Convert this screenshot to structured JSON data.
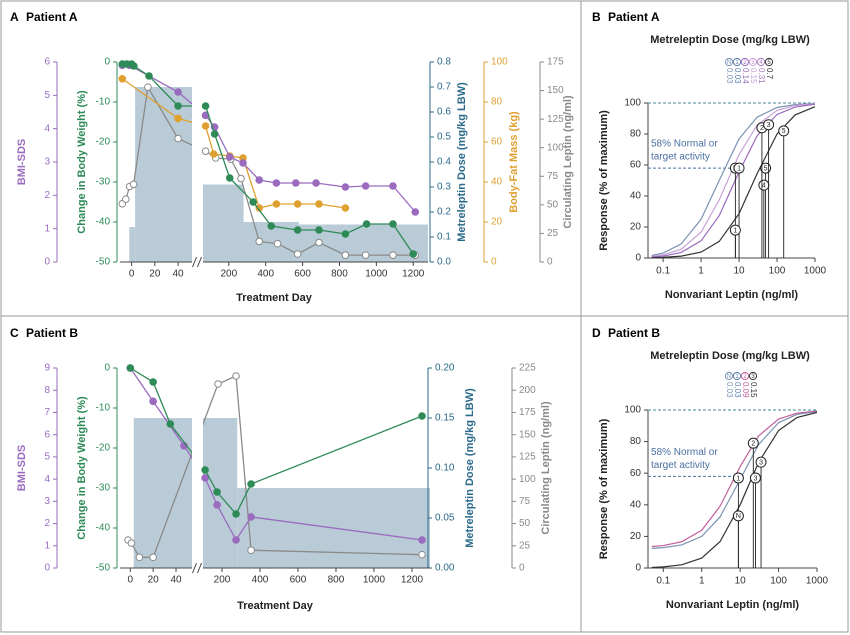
{
  "chart_data": [
    {
      "panel": "A",
      "title": "Patient A",
      "type": "timecourse",
      "xlabel": "Treatment Day",
      "xsegments": [
        {
          "xlim": [
            -10,
            52
          ],
          "xticks": [
            0,
            20,
            40
          ]
        },
        {
          "xlim": [
            60,
            1280
          ],
          "xticks": [
            200,
            400,
            600,
            800,
            1000,
            1200
          ]
        }
      ],
      "axes": [
        {
          "label": "BMI-SDS",
          "color": "#9a6bbf",
          "lim": [
            0,
            6
          ],
          "ticks": [
            0,
            1,
            2,
            3,
            4,
            5,
            6
          ]
        },
        {
          "label": "Change in Body Weight (%)",
          "color": "#2e8b57",
          "lim": [
            -50,
            0
          ],
          "ticks": [
            -50,
            -40,
            -30,
            -20,
            -10,
            0
          ]
        },
        {
          "label": "Metreleptin Dose (mg/kg LBW)",
          "color": "#2b6a8a",
          "lim": [
            0,
            0.8
          ],
          "ticks": [
            {
              "value": 0,
              "label": "0.0"
            },
            0.1,
            0.2,
            0.3,
            0.4,
            0.5,
            0.6,
            0.7,
            0.8
          ]
        },
        {
          "label": "Body-Fat Mass (kg)",
          "color": "#e0a030",
          "lim": [
            0,
            100
          ],
          "ticks": [
            0,
            20,
            40,
            60,
            80,
            100
          ]
        },
        {
          "label": "Circulating Leptin (ng/ml)",
          "color": "#8a8a8a",
          "lim": [
            0,
            175
          ],
          "ticks": [
            0,
            25,
            50,
            75,
            100,
            125,
            150,
            175
          ]
        }
      ],
      "bars": {
        "axis": 2,
        "color": "#b8cbd6",
        "x_start": [
          -2,
          3,
          60,
          280,
          580
        ],
        "x_end": [
          3,
          52,
          280,
          580,
          1280
        ],
        "values": [
          0.14,
          0.7,
          0.31,
          0.16,
          0.15
        ]
      },
      "series": [
        {
          "axis": 4,
          "color": "#8a8a8a",
          "marker": "open",
          "x": [
            -8,
            -5,
            -1.7,
            1.7,
            14,
            40,
            74,
            129,
            211,
            266,
            365,
            464,
            573,
            689,
            832,
            942,
            1090,
            1211
          ],
          "values": [
            51,
            55,
            66,
            68,
            153,
            108,
            97,
            91,
            90,
            73,
            18,
            16,
            7,
            17,
            6,
            6,
            6,
            6
          ]
        },
        {
          "axis": 3,
          "color": "#e0a030",
          "marker": "filled",
          "x": [
            -8,
            40,
            74,
            118,
            205,
            277,
            365,
            458,
            573,
            689,
            832
          ],
          "values": [
            91.6,
            71.8,
            68,
            54,
            53,
            52,
            27,
            29,
            29,
            29,
            27
          ]
        },
        {
          "axis": 0,
          "color": "#9a6bbf",
          "marker": "filled",
          "x": [
            -8,
            -1.7,
            40,
            74,
            123,
            205,
            277,
            365,
            458,
            563,
            673,
            832,
            942,
            1090,
            1211
          ],
          "values": [
            5.9,
            5.9,
            5.1,
            4.4,
            4.05,
            3.15,
            2.97,
            2.46,
            2.37,
            2.37,
            2.37,
            2.25,
            2.28,
            2.28,
            1.5
          ]
        },
        {
          "axis": 1,
          "color": "#2e8b57",
          "marker": "filled",
          "x": [
            -8,
            -4,
            0,
            2,
            15,
            40,
            74,
            123,
            205,
            332,
            430,
            573,
            689,
            832,
            947,
            1090,
            1200
          ],
          "values": [
            -0.5,
            -0.5,
            -0.5,
            -1,
            -3.5,
            -11,
            -11,
            -18,
            -29,
            -35,
            -41,
            -42,
            -42,
            -43,
            -40.5,
            -40.5,
            -48
          ]
        }
      ]
    },
    {
      "panel": "B",
      "title": "Patient A",
      "type": "dose-response",
      "subtitle": "Metreleptin Dose (mg/kg LBW)",
      "xlabel": "Nonvariant Leptin (ng/ml)",
      "ylabel": "Response (% of maximum)",
      "log_x": true,
      "xlim": [
        0.04,
        1000
      ],
      "xticks": [
        0.1,
        1,
        10,
        100,
        1000
      ],
      "ylim": [
        0,
        100
      ],
      "yticks": [
        0,
        20,
        40,
        60,
        80,
        100
      ],
      "doses": [
        {
          "label": "N",
          "dose": 0.03,
          "color": "#7b93b3"
        },
        {
          "label": "1",
          "dose": 0.03,
          "color": "#5a7fb0"
        },
        {
          "label": "2",
          "dose": 0.14,
          "color": "#9a6bbf"
        },
        {
          "label": "3",
          "dose": 0.15,
          "color": "#c7a0d6"
        },
        {
          "label": "4",
          "dose": 0.31,
          "color": "#a87ac0"
        },
        {
          "label": "5",
          "dose": 0.7,
          "color": "#333333"
        }
      ],
      "x": [
        0.05,
        0.1,
        0.3,
        1,
        3,
        10,
        30,
        100,
        300,
        1000
      ],
      "series": [
        {
          "color": "#7b93b3",
          "values": [
            1.6,
            3.2,
            9.1,
            25,
            50,
            76.9,
            90.9,
            97.1,
            99.0,
            99.7
          ]
        },
        {
          "color": "#c7a0d6",
          "values": [
            1.0,
            2.0,
            5.7,
            16.7,
            37.5,
            66.7,
            85.7,
            95.2,
            98.4,
            99.5
          ]
        },
        {
          "color": "#9a6bbf",
          "values": [
            0.6,
            1.2,
            3.6,
            11.1,
            27.3,
            55.6,
            78.9,
            92.6,
            97.4,
            99.2
          ]
        },
        {
          "color": "#333333",
          "values": [
            0.2,
            0.4,
            1.2,
            3.8,
            10.7,
            28.6,
            54.5,
            80,
            92.3,
            97.6
          ]
        }
      ],
      "points": [
        {
          "label": "N",
          "x": 8,
          "y": 58
        },
        {
          "label": "1",
          "x": 10,
          "y": 58
        },
        {
          "label": "5",
          "x": 50,
          "y": 58
        },
        {
          "label": "1",
          "x": 8,
          "y": 18
        },
        {
          "label": "4",
          "x": 45,
          "y": 47
        },
        {
          "label": "2",
          "x": 40,
          "y": 84
        },
        {
          "label": "3",
          "x": 60,
          "y": 86
        },
        {
          "label": "5",
          "x": 150,
          "y": 82
        }
      ],
      "target": 58,
      "annotation": [
        "58% Normal or",
        "target activity"
      ]
    },
    {
      "panel": "C",
      "title": "Patient B",
      "type": "timecourse",
      "xlabel": "Treatment Day",
      "xsegments": [
        {
          "xlim": [
            -9,
            54
          ],
          "xticks": [
            0,
            20,
            40
          ]
        },
        {
          "xlim": [
            100,
            1295
          ],
          "xticks": [
            200,
            400,
            600,
            800,
            1000,
            1200
          ]
        }
      ],
      "axes": [
        {
          "label": "BMI-SDS",
          "color": "#9a6bbf",
          "lim": [
            0,
            9
          ],
          "ticks": [
            0,
            1,
            2,
            3,
            4,
            5,
            6,
            7,
            8,
            9
          ]
        },
        {
          "label": "Change in Body Weight (%)",
          "color": "#2e8b57",
          "lim": [
            -50,
            0
          ],
          "ticks": [
            -50,
            -40,
            -30,
            -20,
            -10,
            0
          ]
        },
        {
          "label": "Metreleptin Dose (mg/kg LBW)",
          "color": "#2b6a8a",
          "lim": [
            0,
            0.2
          ],
          "ticks": [
            {
              "value": 0,
              "label": "0.00"
            },
            0.05,
            {
              "value": 0.1,
              "label": "0.10"
            },
            0.15,
            {
              "value": 0.2,
              "label": "0.20"
            }
          ]
        },
        {
          "label": "Circulating Leptin (ng/ml)",
          "color": "#8a8a8a",
          "lim": [
            0,
            225
          ],
          "ticks": [
            0,
            25,
            50,
            75,
            100,
            125,
            150,
            175,
            200,
            225
          ]
        }
      ],
      "bars": {
        "axis": 2,
        "color": "#b8cbd6",
        "x_start": [
          3,
          100,
          280
        ],
        "x_end": [
          54,
          280,
          1295
        ],
        "values": [
          0.15,
          0.15,
          0.08
        ]
      },
      "series": [
        {
          "axis": 3,
          "color": "#8a8a8a",
          "marker": "open",
          "x": [
            -2,
            1,
            8,
            20,
            179,
            274,
            353,
            1253
          ],
          "values": [
            31.5,
            28,
            12,
            12,
            207,
            216,
            20,
            15
          ]
        },
        {
          "axis": 0,
          "color": "#9a6bbf",
          "marker": "filled",
          "x": [
            0,
            20,
            47,
            111,
            174,
            274,
            353,
            1253
          ],
          "values": [
            9,
            7.5,
            5.5,
            4.05,
            2.84,
            1.26,
            2.3,
            1.26
          ]
        },
        {
          "axis": 1,
          "color": "#2e8b57",
          "marker": "filled",
          "x": [
            0,
            20,
            35,
            111,
            174,
            274,
            353,
            1253
          ],
          "values": [
            0,
            -3.5,
            -14,
            -25.5,
            -31,
            -36.5,
            -29,
            -12
          ]
        }
      ]
    },
    {
      "panel": "D",
      "title": "Patient B",
      "type": "dose-response",
      "subtitle": "Metreleptin Dose (mg/kg LBW)",
      "xlabel": "Nonvariant Leptin (ng/ml)",
      "ylabel": "Response (% of maximum)",
      "log_x": true,
      "xlim": [
        0.04,
        1000
      ],
      "xticks": [
        0.1,
        1,
        10,
        100,
        1000
      ],
      "ylim": [
        0,
        100
      ],
      "yticks": [
        0,
        20,
        40,
        60,
        80,
        100
      ],
      "doses": [
        {
          "label": "N",
          "dose": 0.03,
          "color": "#7b93b3"
        },
        {
          "label": "1",
          "dose": 0.03,
          "color": "#5a7fb0"
        },
        {
          "label": "2",
          "dose": 0.09,
          "color": "#c0609a"
        },
        {
          "label": "3",
          "dose": 0.15,
          "color": "#333333"
        }
      ],
      "x": [
        0.05,
        0.1,
        0.3,
        1,
        3,
        10,
        30,
        100,
        300,
        1000
      ],
      "series": [
        {
          "color": "#7b93b3",
          "values": [
            12.4,
            12.9,
            14.6,
            20,
            32.3,
            56,
            78,
            92,
            97.2,
            99.1
          ]
        },
        {
          "color": "#c0609a",
          "values": [
            13.6,
            14.2,
            16.6,
            23.9,
            39.1,
            64.2,
            83.5,
            94.3,
            98,
            99.4
          ]
        },
        {
          "color": "#333333",
          "values": [
            0.3,
            0.7,
            2,
            6.3,
            16.7,
            40,
            66.7,
            87,
            95.2,
            98.5
          ]
        }
      ],
      "points": [
        {
          "label": "1",
          "x": 9,
          "y": 57
        },
        {
          "label": "N",
          "x": 9,
          "y": 33
        },
        {
          "label": "2",
          "x": 22,
          "y": 79
        },
        {
          "label": "3",
          "x": 35,
          "y": 67
        },
        {
          "label": "3",
          "x": 25,
          "y": 57
        }
      ],
      "target": 58,
      "annotation": [
        "58% Normal or",
        "target activity"
      ]
    }
  ]
}
